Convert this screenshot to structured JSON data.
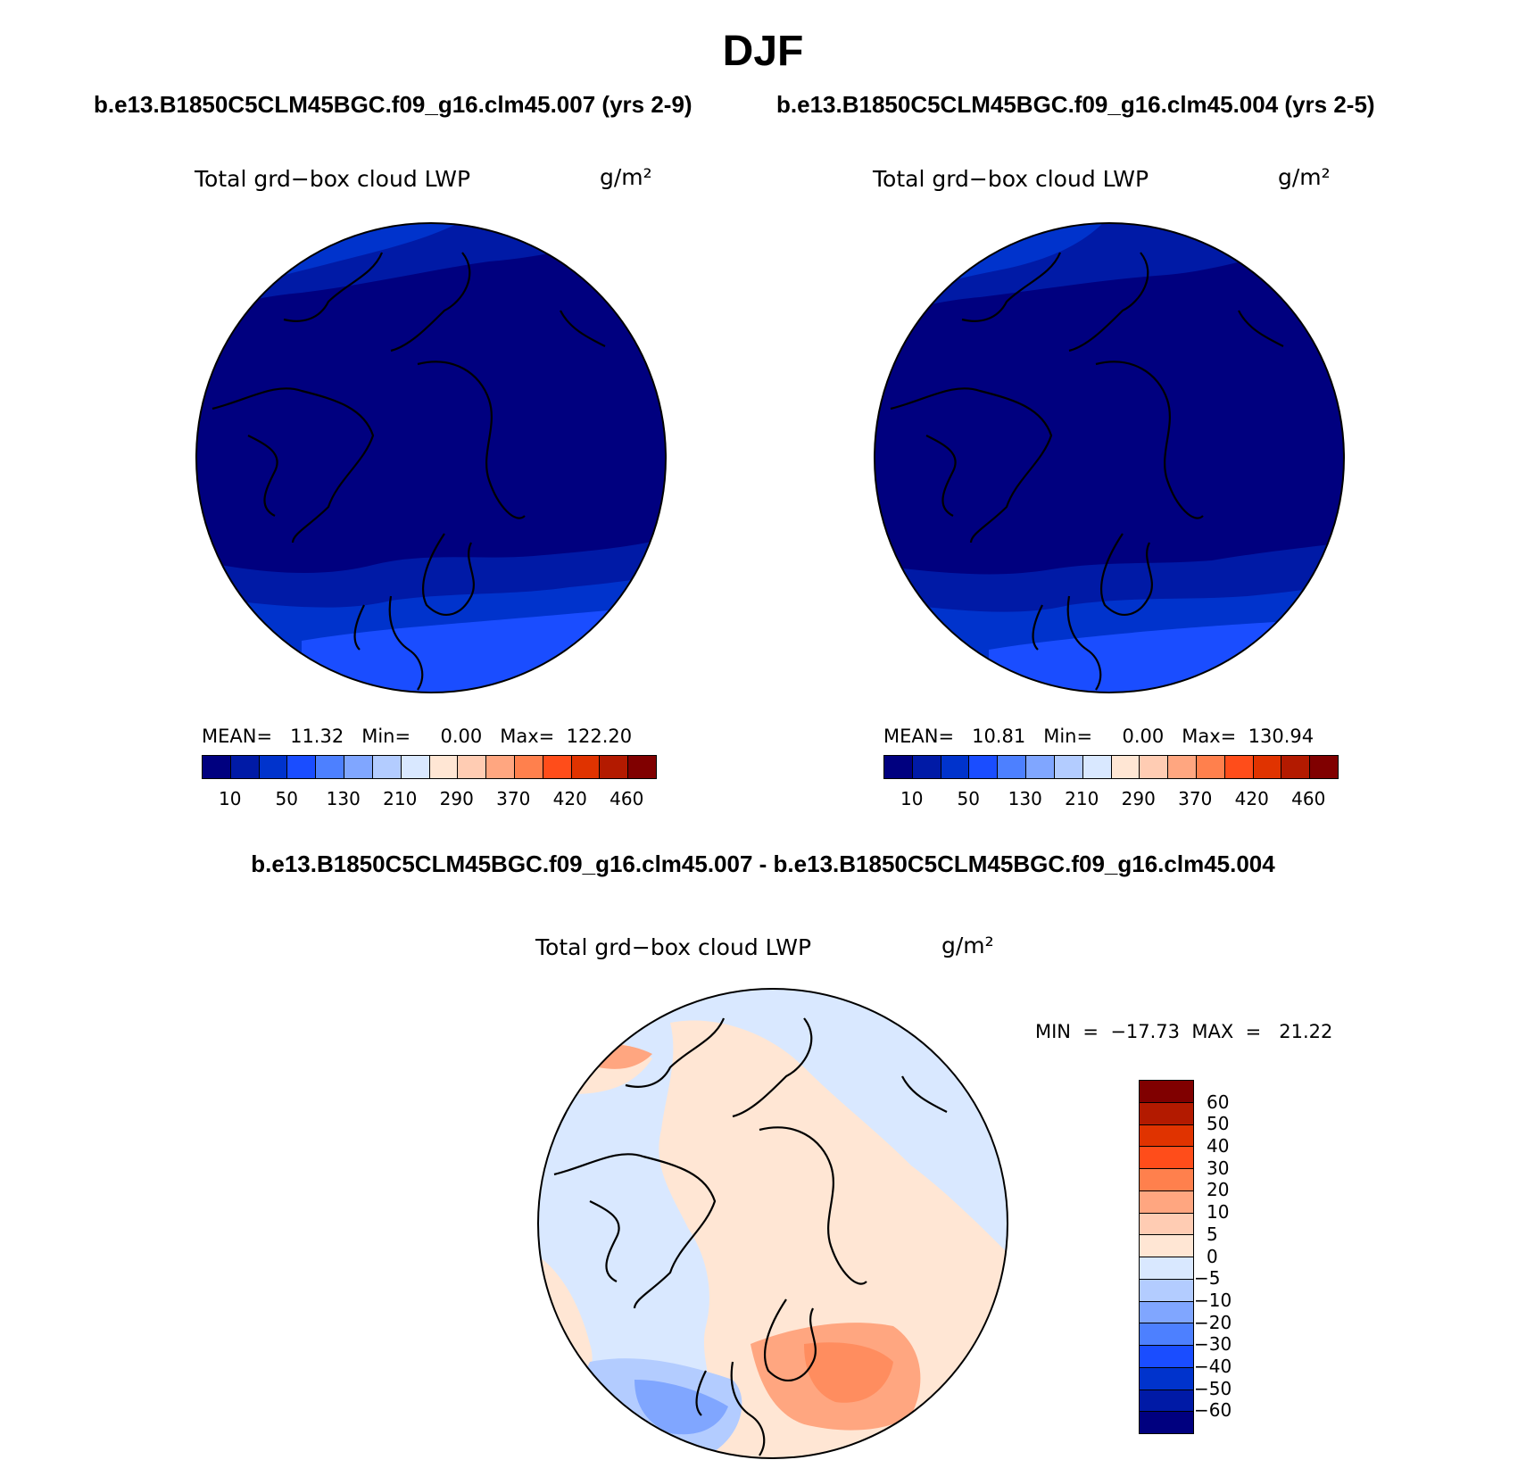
{
  "title": "DJF",
  "case1_title": "b.e13.B1850C5CLM45BGC.f09_g16.clm45.007 (yrs 2-9)",
  "case2_title": "b.e13.B1850C5CLM45BGC.f09_g16.clm45.004 (yrs 2-5)",
  "diff_title": "b.e13.B1850C5CLM45BGC.f09_g16.clm45.007 - b.e13.B1850C5CLM45BGC.f09_g16.clm45.004",
  "variable": "Total grd−box cloud LWP",
  "units": "g/m²",
  "panels": [
    {
      "stats": "MEAN=   11.32   Min=     0.00   Max=  122.20"
    },
    {
      "stats": "MEAN=   10.81   Min=     0.00   Max=  130.94"
    }
  ],
  "diff_stats": "MIN  =  −17.73  MAX  =   21.22",
  "colorbar": {
    "colors": [
      "#00007f",
      "#001aa6",
      "#0033cc",
      "#1a4dff",
      "#4d80ff",
      "#80a6ff",
      "#b3ccff",
      "#d9e8ff",
      "#ffe6d4",
      "#ffccb3",
      "#ffa680",
      "#ff804d",
      "#ff4d1a",
      "#e03300",
      "#b31a00",
      "#800000"
    ],
    "tick_labels": [
      "10",
      "50",
      "130",
      "210",
      "290",
      "370",
      "420",
      "460"
    ]
  },
  "diff_colorbar": {
    "colors": [
      "#800000",
      "#b31a00",
      "#e03300",
      "#ff4d1a",
      "#ff804d",
      "#ffa680",
      "#ffccb3",
      "#ffe6d4",
      "#d9e8ff",
      "#b3ccff",
      "#80a6ff",
      "#4d80ff",
      "#1a4dff",
      "#0033cc",
      "#001aa6",
      "#00007f"
    ],
    "tick_labels": [
      "60",
      "50",
      "40",
      "30",
      "20",
      "10",
      "5",
      "0",
      "−5",
      "−10",
      "−20",
      "−30",
      "−40",
      "−50",
      "−60"
    ]
  },
  "map_colors": {
    "deep": "#00007f",
    "mid": "#001aa6",
    "mid2": "#0033cc",
    "light": "#1a4dff",
    "diff_warm": "#ffe6d4",
    "diff_cool": "#d9e8ff",
    "diff_blue": "#b3ccff",
    "diff_blue2": "#80a6ff",
    "diff_orange": "#ffa680",
    "diff_orange2": "#ff804d"
  }
}
